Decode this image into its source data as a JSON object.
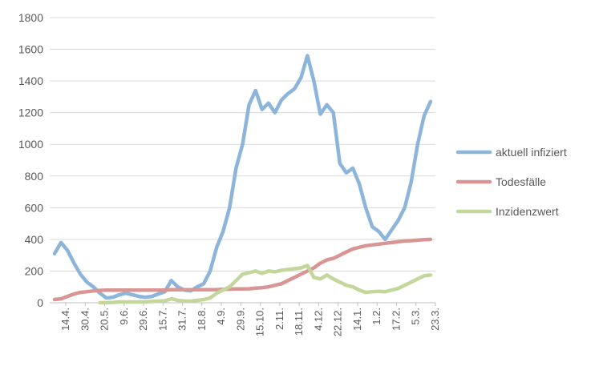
{
  "chart_data": {
    "type": "line",
    "title": "",
    "xlabel": "",
    "ylabel": "",
    "ylim": [
      0,
      1800
    ],
    "yticks": [
      0,
      200,
      400,
      600,
      800,
      1000,
      1200,
      1400,
      1600,
      1800
    ],
    "xticks": [
      "14.4.",
      "30.4.",
      "20.5.",
      "9.6.",
      "29.6.",
      "15.7.",
      "31.7.",
      "18.8.",
      "4.9.",
      "29.9.",
      "15.10.",
      "2.11.",
      "18.11.",
      "4.12.",
      "22.12.",
      "14.1.",
      "1.2.",
      "17.2.",
      "5.3.",
      "23.3."
    ],
    "grid": "horizontal",
    "legend": "right",
    "series": [
      {
        "name": "aktuell infiziert",
        "color": "#8db4d9",
        "values": [
          310,
          380,
          330,
          250,
          180,
          130,
          100,
          60,
          30,
          35,
          50,
          60,
          50,
          40,
          35,
          40,
          55,
          70,
          140,
          100,
          80,
          75,
          100,
          120,
          200,
          350,
          450,
          600,
          850,
          1000,
          1250,
          1340,
          1220,
          1260,
          1200,
          1280,
          1320,
          1350,
          1420,
          1560,
          1400,
          1190,
          1250,
          1200,
          880,
          820,
          850,
          750,
          600,
          480,
          450,
          400,
          460,
          520,
          600,
          760,
          1000,
          1180,
          1270
        ]
      },
      {
        "name": "Todesfälle",
        "color": "#d99594",
        "values": [
          20,
          25,
          40,
          55,
          65,
          70,
          75,
          78,
          80,
          80,
          80,
          80,
          80,
          80,
          80,
          80,
          80,
          80,
          82,
          82,
          82,
          82,
          82,
          82,
          82,
          83,
          85,
          86,
          87,
          87,
          88,
          92,
          95,
          100,
          110,
          120,
          140,
          160,
          180,
          200,
          220,
          250,
          270,
          280,
          300,
          320,
          340,
          350,
          360,
          365,
          370,
          375,
          380,
          385,
          390,
          392,
          395,
          398,
          400
        ]
      },
      {
        "name": "Inzidenzwert",
        "color": "#c3d69b",
        "values": [
          null,
          null,
          null,
          null,
          null,
          null,
          null,
          0,
          0,
          2,
          5,
          5,
          5,
          5,
          5,
          8,
          10,
          12,
          25,
          15,
          10,
          10,
          15,
          20,
          30,
          60,
          80,
          100,
          140,
          180,
          190,
          200,
          185,
          200,
          195,
          205,
          210,
          215,
          220,
          235,
          160,
          150,
          175,
          150,
          130,
          110,
          100,
          80,
          65,
          70,
          72,
          70,
          80,
          90,
          110,
          130,
          150,
          170,
          175
        ]
      }
    ]
  }
}
